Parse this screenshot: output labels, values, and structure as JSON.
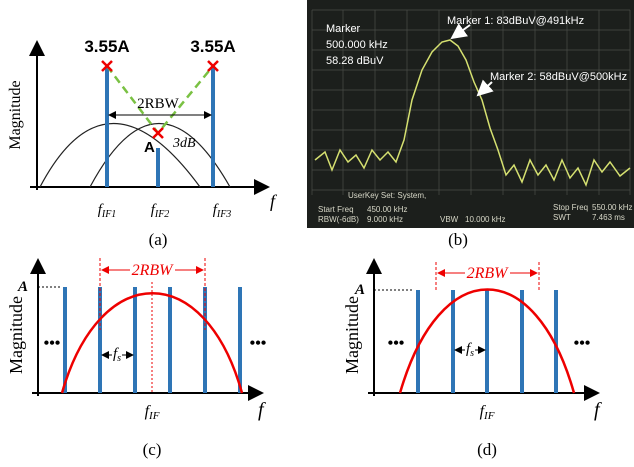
{
  "panel_a": {
    "ylabel": "Magnitude",
    "xlabel": "f",
    "peak_left": "3.55A",
    "peak_right": "3.55A",
    "rbw": "2RBW",
    "dip": "A",
    "dip_db": "3dB",
    "ticks": [
      {
        "base": "f",
        "sub": "IF1"
      },
      {
        "base": "f",
        "sub": "IF2"
      },
      {
        "base": "f",
        "sub": "IF3"
      }
    ],
    "caption": "(a)"
  },
  "panel_b": {
    "marker_title": "Marker",
    "marker_freq": "500.000 kHz",
    "marker_level": "58.28 dBuV",
    "marker1": "Marker 1: 83dBuV@491kHz",
    "marker2": "Marker 2: 58dBuV@500kHz",
    "userkey": "UserKey Set:  System,",
    "start_freq": "Start Freq",
    "start_val": "450.00 kHz",
    "rbw": "RBW(-6dB)",
    "rbw_val": "9.000 kHz",
    "vbw": "VBW",
    "vbw_val": "10.000 kHz",
    "stop_freq": "Stop Freq",
    "stop_val": "550.00 kHz",
    "swt": "SWT",
    "swt_val": "7.463 ms",
    "caption": "(b)"
  },
  "panel_c": {
    "ylabel": "Magnitude",
    "amp": "A",
    "rbw": "2RBW",
    "fs": {
      "base": "f",
      "sub": "s"
    },
    "dots_left": "•••",
    "dots_right": "•••",
    "tick": {
      "base": "f",
      "sub": "IF"
    },
    "xlabel": "f",
    "caption": "(c)"
  },
  "panel_d": {
    "ylabel": "Magnitude",
    "amp": "A",
    "rbw": "2RBW",
    "fs": {
      "base": "f",
      "sub": "s"
    },
    "dots_left": "•••",
    "dots_right": "•••",
    "tick": {
      "base": "f",
      "sub": "IF"
    },
    "xlabel": "f",
    "caption": "(d)"
  }
}
